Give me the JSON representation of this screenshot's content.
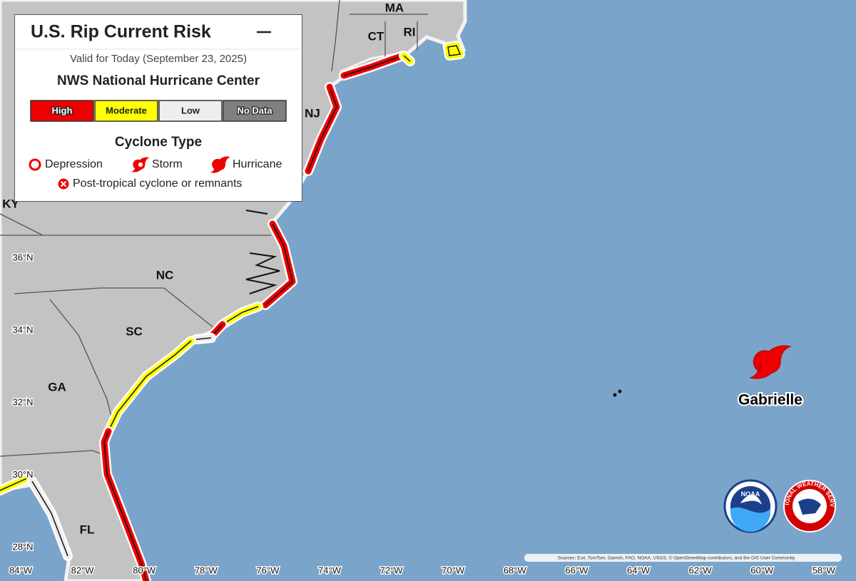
{
  "map": {
    "title": "U.S. Rip Current Risk",
    "valid": "Valid for Today (September 23, 2025)",
    "source": "NWS National Hurricane Center",
    "risk_levels": [
      {
        "label": "High",
        "color": "#ee0000"
      },
      {
        "label": "Moderate",
        "color": "#ffff00"
      },
      {
        "label": "Low",
        "color": "#eeeeee"
      },
      {
        "label": "No Data",
        "color": "#808080"
      }
    ],
    "cyclone_type": {
      "title": "Cyclone Type",
      "items": [
        "Depression",
        "Storm",
        "Hurricane"
      ],
      "post_tropical": "Post-tropical cyclone or remnants"
    },
    "states": [
      "MA",
      "CT",
      "RI",
      "NJ",
      "NC",
      "SC",
      "GA",
      "FL",
      "KY"
    ],
    "latitudes": [
      "36°N",
      "34°N",
      "32°N",
      "30°N",
      "28°N"
    ],
    "longitudes": [
      "84°W",
      "82°W",
      "80°W",
      "78°W",
      "76°W",
      "74°W",
      "72°W",
      "70°W",
      "68°W",
      "66°W",
      "64°W",
      "62°W",
      "60°W",
      "58°W"
    ],
    "storm": "Gabrielle",
    "logos": [
      "NOAA",
      "NATIONAL WEATHER SERVICE"
    ],
    "attribution": "Sources: Esri, TomTom, Garmin, FAO, NOAA, USGS, © OpenStreetMap contributors, and the GIS User Community"
  }
}
